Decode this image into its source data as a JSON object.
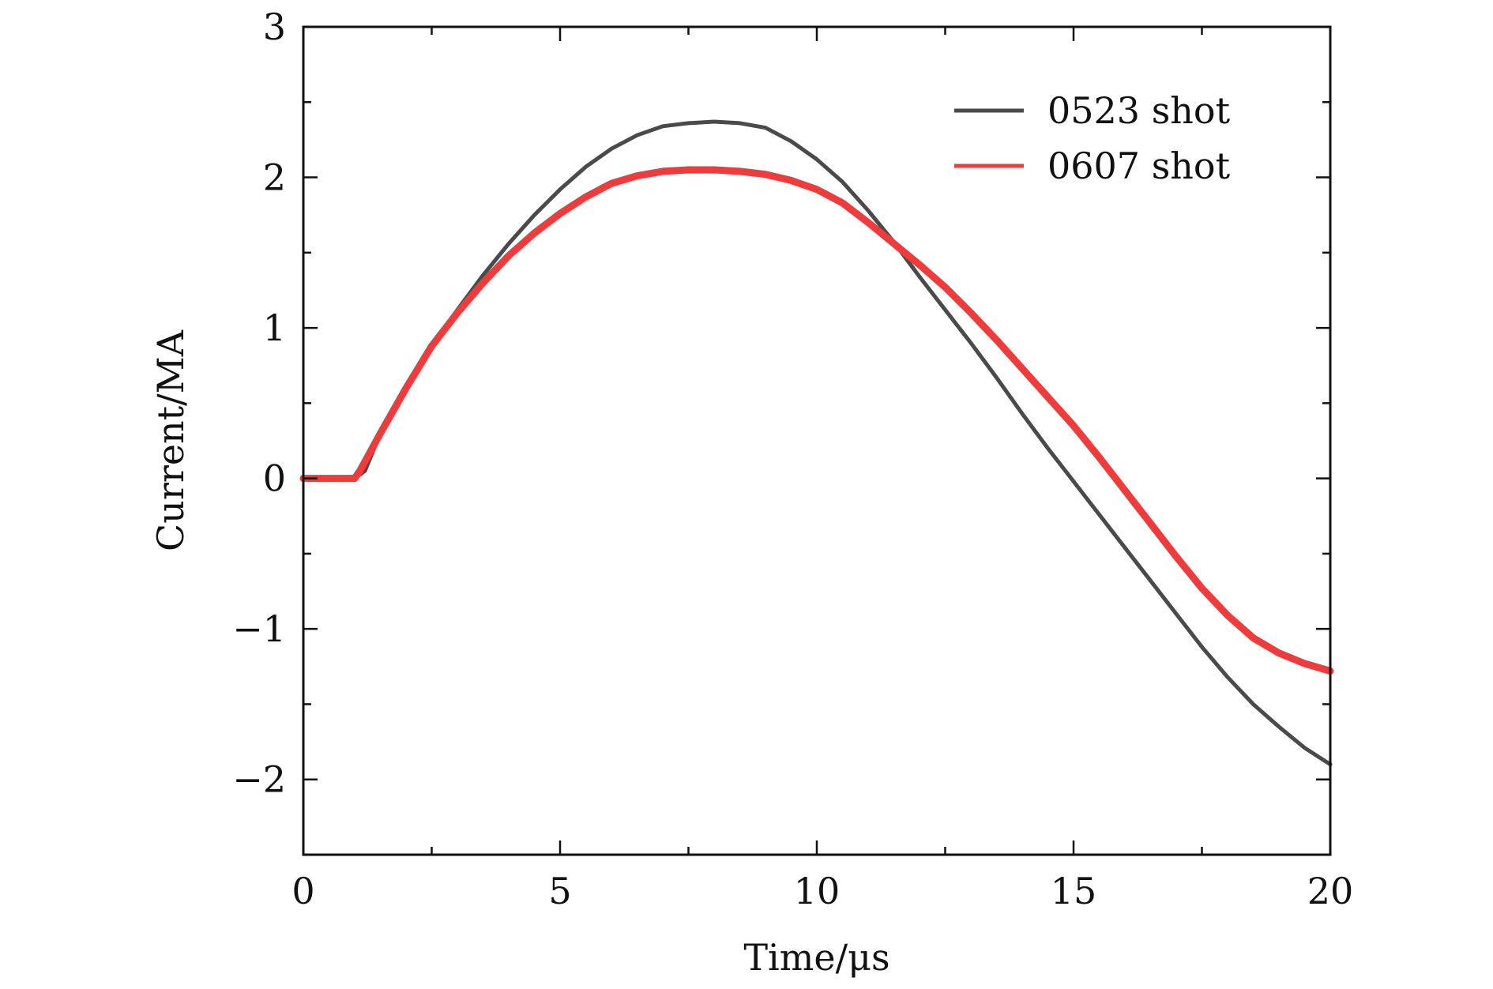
{
  "chart_data": {
    "type": "line",
    "xlabel": "Time/μs",
    "ylabel": "Current/MA",
    "xlim": [
      0,
      20
    ],
    "ylim": [
      -2.5,
      3
    ],
    "xticks": [
      0,
      5,
      10,
      15,
      20
    ],
    "xtick_labels": [
      "0",
      "5",
      "10",
      "15",
      "20"
    ],
    "yticks": [
      -2,
      -1,
      0,
      1,
      2,
      3
    ],
    "ytick_labels": [
      "−2",
      "−1",
      "0",
      "1",
      "2",
      "3"
    ],
    "legend_position": "top-right",
    "grid": false,
    "series": [
      {
        "name": "0523 shot",
        "color": "#4a4a4a",
        "x": [
          0,
          0.5,
          1.0,
          1.2,
          1.5,
          2,
          2.5,
          3,
          3.5,
          4,
          4.5,
          5,
          5.5,
          6,
          6.5,
          7,
          7.5,
          8,
          8.5,
          9,
          9.5,
          10,
          10.5,
          11,
          11.5,
          12,
          12.5,
          13,
          13.5,
          14,
          14.5,
          15,
          15.5,
          16,
          16.5,
          17,
          17.5,
          18,
          18.5,
          19,
          19.5,
          20
        ],
        "y": [
          0.0,
          0.0,
          0.0,
          0.05,
          0.3,
          0.6,
          0.88,
          1.12,
          1.35,
          1.56,
          1.75,
          1.92,
          2.07,
          2.19,
          2.28,
          2.34,
          2.36,
          2.37,
          2.36,
          2.33,
          2.24,
          2.12,
          1.97,
          1.78,
          1.57,
          1.34,
          1.12,
          0.9,
          0.67,
          0.43,
          0.2,
          -0.02,
          -0.24,
          -0.46,
          -0.68,
          -0.9,
          -1.12,
          -1.32,
          -1.5,
          -1.65,
          -1.79,
          -1.9
        ]
      },
      {
        "name": "0607 shot",
        "color": "#ee3b3b",
        "x": [
          0,
          0.5,
          1.0,
          1.1,
          1.5,
          2,
          2.5,
          3,
          3.5,
          4,
          4.5,
          5,
          5.5,
          6,
          6.5,
          7,
          7.5,
          8,
          8.5,
          9,
          9.5,
          10,
          10.5,
          11,
          11.5,
          12,
          12.5,
          13,
          13.5,
          14,
          14.5,
          15,
          15.5,
          16,
          16.5,
          17,
          17.5,
          18,
          18.5,
          19,
          19.5,
          20
        ],
        "y": [
          0.0,
          0.0,
          0.0,
          0.05,
          0.3,
          0.6,
          0.88,
          1.1,
          1.3,
          1.48,
          1.63,
          1.76,
          1.87,
          1.96,
          2.01,
          2.04,
          2.05,
          2.05,
          2.04,
          2.02,
          1.98,
          1.92,
          1.83,
          1.7,
          1.56,
          1.42,
          1.27,
          1.1,
          0.92,
          0.73,
          0.54,
          0.35,
          0.14,
          -0.08,
          -0.3,
          -0.52,
          -0.73,
          -0.91,
          -1.06,
          -1.16,
          -1.23,
          -1.28
        ]
      }
    ]
  }
}
